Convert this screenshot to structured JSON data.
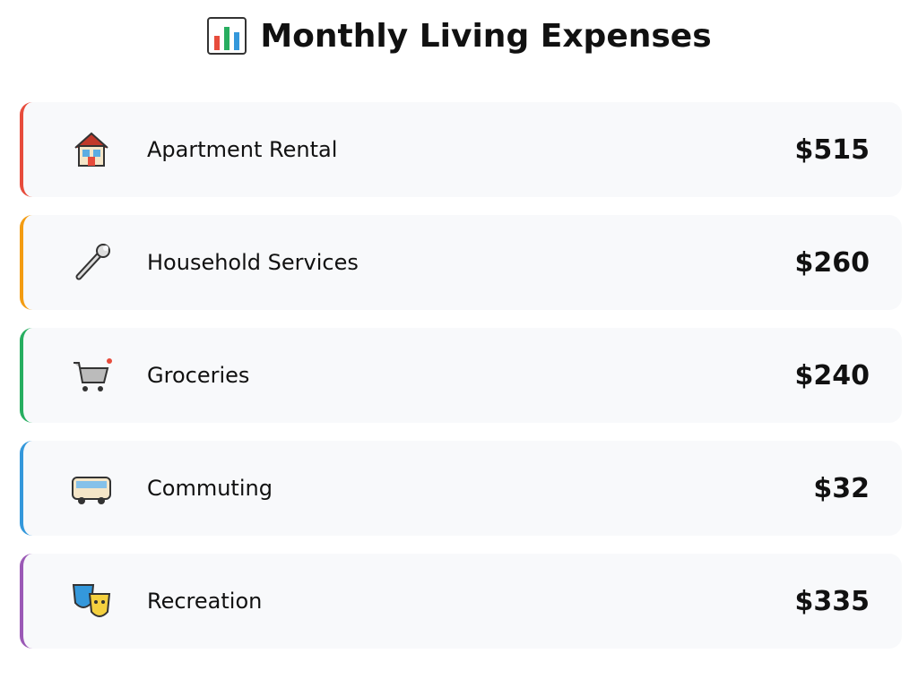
{
  "header": {
    "title": "Monthly Living Expenses"
  },
  "items": [
    {
      "label": "Apartment Rental",
      "amount": "$515",
      "color": "#e74c3c"
    },
    {
      "label": "Household Services",
      "amount": "$260",
      "color": "#f39c12"
    },
    {
      "label": "Groceries",
      "amount": "$240",
      "color": "#27ae60"
    },
    {
      "label": "Commuting",
      "amount": "$32",
      "color": "#3498db"
    },
    {
      "label": "Recreation",
      "amount": "$335",
      "color": "#9b59b6"
    }
  ]
}
